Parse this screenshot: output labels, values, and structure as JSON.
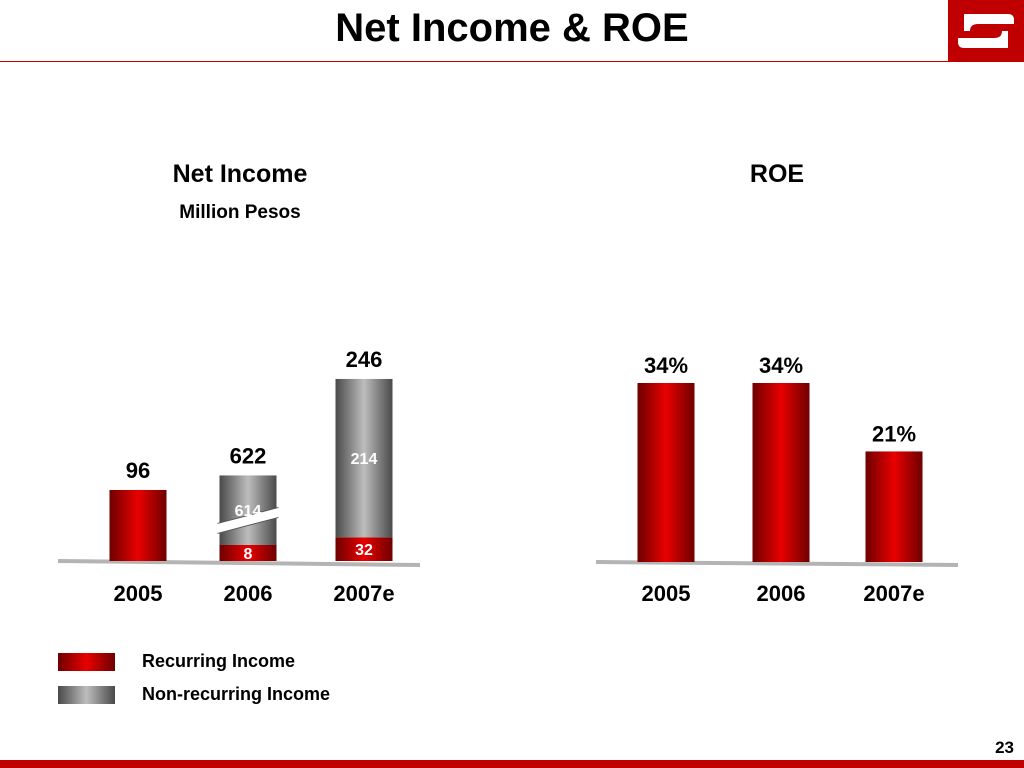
{
  "slide": {
    "title": "Net Income & ROE",
    "page_number": "23"
  },
  "colors": {
    "brand_red": "#c00000",
    "recurring_dark": "#6e0000",
    "recurring_light": "#e80000",
    "nonrecurring_dark": "#4a4a4a",
    "nonrecurring_light": "#bdbdbd"
  },
  "logo": {
    "icon": "banorte-logo-icon"
  },
  "legend": {
    "placement": "bottom-left",
    "items": [
      {
        "label": "Recurring Income",
        "color": "red"
      },
      {
        "label": "Non-recurring Income",
        "color": "grey"
      }
    ]
  },
  "chart_data": [
    {
      "type": "bar",
      "stacked": true,
      "title": "Net Income",
      "subtitle": "Million Pesos",
      "categories": [
        "2005",
        "2006",
        "2007e"
      ],
      "series": [
        {
          "name": "Recurring Income",
          "values": [
            96,
            8,
            32
          ],
          "segment_labels": [
            "",
            "8",
            "32"
          ]
        },
        {
          "name": "Non-recurring Income",
          "values": [
            0,
            614,
            214
          ],
          "segment_labels": [
            "",
            "614",
            "214"
          ]
        }
      ],
      "totals": [
        96,
        622,
        246
      ],
      "total_labels": [
        "96",
        "622",
        "246"
      ],
      "axis_break": {
        "category": "2006",
        "series": "Non-recurring Income"
      },
      "grid": false
    },
    {
      "type": "bar",
      "title": "ROE",
      "categories": [
        "2005",
        "2006",
        "2007e"
      ],
      "values": [
        34,
        34,
        21
      ],
      "value_labels": [
        "34%",
        "34%",
        "21%"
      ],
      "ylim": [
        0,
        40
      ],
      "grid": false
    }
  ]
}
